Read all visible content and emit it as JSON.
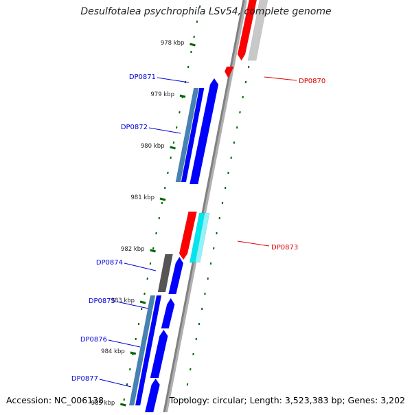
{
  "title": "Desulfotalea psychrophila LSv54, complete genome",
  "footer": {
    "accession": "Accession: NC_006138",
    "summary": "Topology: circular; Length: 3,523,383 bp; Genes: 3,202"
  },
  "ticks": [
    "978 kbp",
    "979 kbp",
    "980 kbp",
    "981 kbp",
    "982 kbp",
    "983 kbp",
    "984 kbp",
    "985 kbp"
  ],
  "genes": [
    {
      "label": "DP0870",
      "strand": "forward",
      "color": "#dd0000"
    },
    {
      "label": "DP0871",
      "strand": "reverse",
      "color": "#0000dd"
    },
    {
      "label": "DP0872",
      "strand": "reverse",
      "color": "#0000dd"
    },
    {
      "label": "DP0873",
      "strand": "forward",
      "color": "#dd0000"
    },
    {
      "label": "DP0874",
      "strand": "reverse",
      "color": "#0000dd"
    },
    {
      "label": "DP0875",
      "strand": "reverse",
      "color": "#0000dd"
    },
    {
      "label": "DP0876",
      "strand": "reverse",
      "color": "#0000dd"
    },
    {
      "label": "DP0877",
      "strand": "reverse",
      "color": "#0000dd"
    }
  ],
  "colors": {
    "forward_cds": "#ff0000",
    "reverse_cds": "#0000ff",
    "forward_cds_shade": "#c8c8c8",
    "reverse_cds_shade": "#4682b4",
    "rna": "#00e5ee",
    "gray_feature": "#555555",
    "backbone": "#808080",
    "tick": "#006400"
  }
}
